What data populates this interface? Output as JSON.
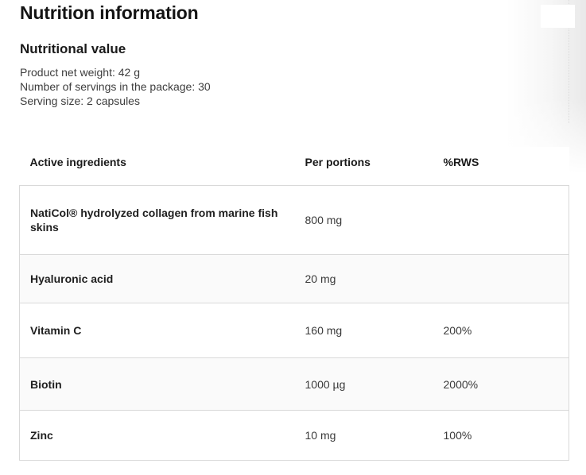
{
  "page": {
    "title": "Nutrition information",
    "section_heading": "Nutritional value",
    "meta": {
      "net_weight": "Product net weight: 42 g",
      "servings": "Number of servings in the package: 30",
      "serving_size": "Serving size: 2 capsules"
    }
  },
  "table": {
    "headers": [
      "Active ingredients",
      "Per portions",
      "%RWS"
    ],
    "rows": [
      {
        "name": "NatiCol® hydrolyzed collagen from marine fish skins",
        "per_portion": "800 mg",
        "rws": ""
      },
      {
        "name": "Hyaluronic acid",
        "per_portion": "20 mg",
        "rws": ""
      },
      {
        "name": "Vitamin C",
        "per_portion": "160 mg",
        "rws": "200%"
      },
      {
        "name": "Biotin",
        "per_portion": "1000 µg",
        "rws": "2000%"
      },
      {
        "name": "Zinc",
        "per_portion": "10 mg",
        "rws": "100%"
      }
    ]
  },
  "colors": {
    "background": "#ffffff",
    "heading_text": "#141414",
    "body_text": "#3e3e3e",
    "table_border": "#d9d9d9",
    "row_stripe": "#fafafa",
    "edge_gradient": "#e9e9e9"
  }
}
